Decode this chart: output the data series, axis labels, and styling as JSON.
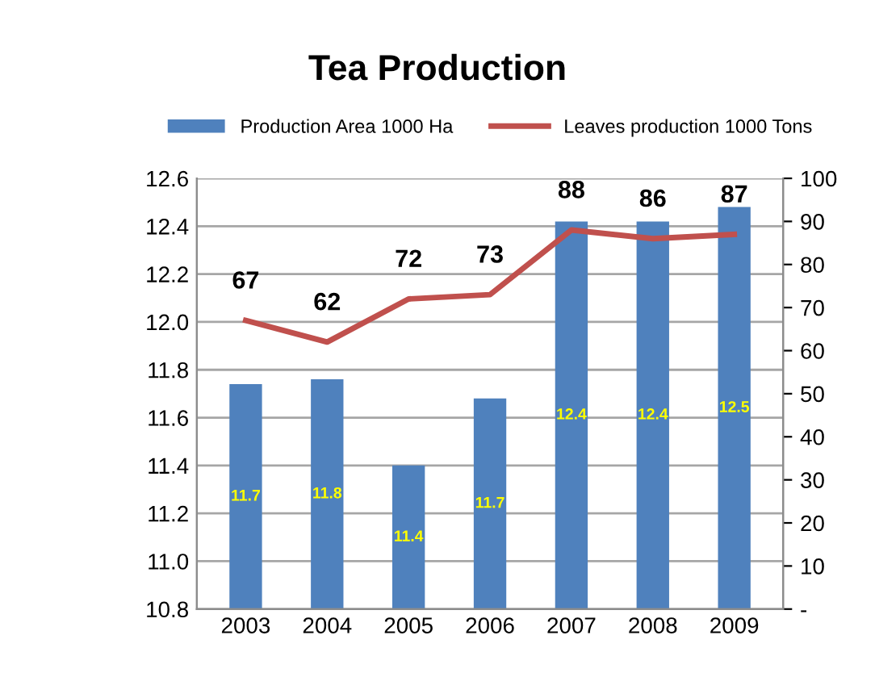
{
  "chart_data": {
    "type": "bar",
    "title": "Tea Production",
    "categories": [
      "2003",
      "2004",
      "2005",
      "2006",
      "2007",
      "2008",
      "2009"
    ],
    "series": [
      {
        "name": "Production Area 1000 Ha",
        "color": "#4f81bd",
        "values": [
          11.74,
          11.76,
          11.4,
          11.68,
          12.42,
          12.42,
          12.48
        ],
        "value_labels": [
          "11.7",
          "11.8",
          "11.4",
          "11.7",
          "12.4",
          "12.4",
          "12.5"
        ]
      },
      {
        "name": "Leaves production 1000 Tons",
        "type": "line",
        "axis": "y2",
        "color": "#c0504d",
        "values": [
          67,
          62,
          72,
          73,
          88,
          86,
          87
        ],
        "value_labels": [
          "67",
          "62",
          "72",
          "73",
          "88",
          "86",
          "87"
        ]
      }
    ],
    "ylim": [
      10.8,
      12.6
    ],
    "yticks": [
      "10.8",
      "11.0",
      "11.2",
      "11.4",
      "11.6",
      "11.8",
      "12.0",
      "12.2",
      "12.4",
      "12.6"
    ],
    "y2lim": [
      0,
      100
    ],
    "y2ticks": [
      {
        "value": 0,
        "label": "-"
      },
      10,
      20,
      30,
      40,
      50,
      60,
      70,
      80,
      90,
      100
    ],
    "grid": "y",
    "legend": "top",
    "marker": "none"
  }
}
